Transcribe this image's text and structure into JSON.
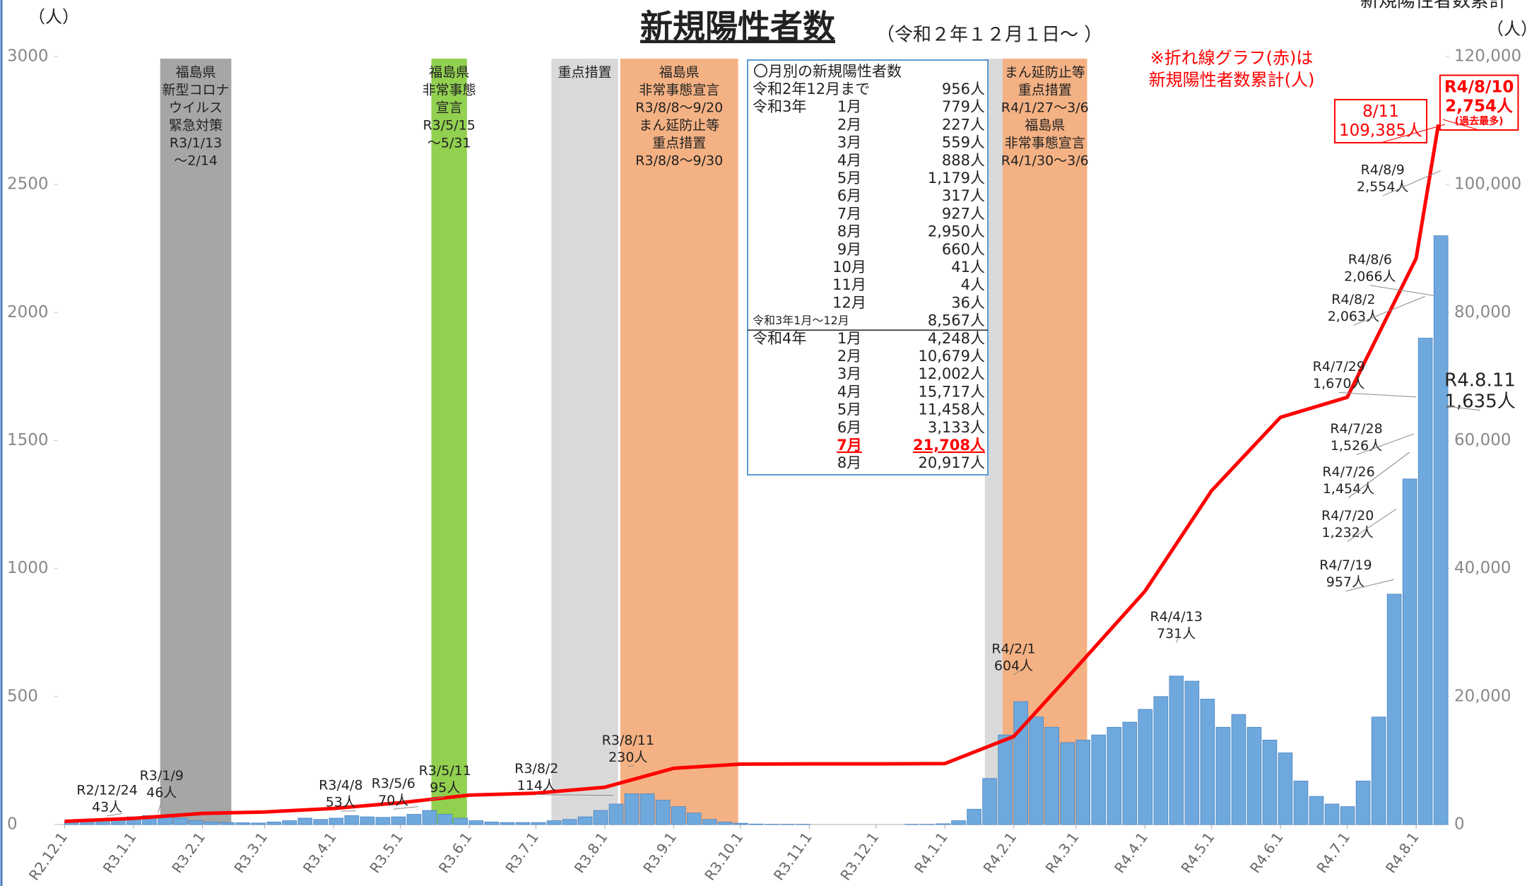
{
  "chart_data": {
    "type": "bar",
    "title": "新規陽性者数",
    "subtitle": "（令和２年１２月１日～ ）",
    "y_unit": "（人）",
    "y2_unit": "（人）",
    "y2_title": "新規陽性者数累計",
    "note": [
      "※折れ線グラフ(赤)は",
      "新規陽性者数累計(人)"
    ],
    "xlim": [
      "2020-11-28",
      "2022-08-14"
    ],
    "xticks": [
      {
        "value": "2020-12-01",
        "label": "R2.12.1"
      },
      {
        "value": "2021-01-01",
        "label": "R3.1.1"
      },
      {
        "value": "2021-02-01",
        "label": "R3.2.1"
      },
      {
        "value": "2021-03-01",
        "label": "R3.3.1"
      },
      {
        "value": "2021-04-01",
        "label": "R3.4.1"
      },
      {
        "value": "2021-05-01",
        "label": "R3.5.1"
      },
      {
        "value": "2021-06-01",
        "label": "R3.6.1"
      },
      {
        "value": "2021-07-01",
        "label": "R3.7.1"
      },
      {
        "value": "2021-08-01",
        "label": "R3.8.1"
      },
      {
        "value": "2021-09-01",
        "label": "R3.9.1"
      },
      {
        "value": "2021-10-01",
        "label": "R3.10.1"
      },
      {
        "value": "2021-11-01",
        "label": "R3.11.1"
      },
      {
        "value": "2021-12-01",
        "label": "R3.12.1"
      },
      {
        "value": "2022-01-01",
        "label": "R4.1.1"
      },
      {
        "value": "2022-02-01",
        "label": "R4.2.1"
      },
      {
        "value": "2022-03-01",
        "label": "R4.3.1"
      },
      {
        "value": "2022-04-01",
        "label": "R4.4.1"
      },
      {
        "value": "2022-05-01",
        "label": "R4.5.1"
      },
      {
        "value": "2022-06-01",
        "label": "R4.6.1"
      },
      {
        "value": "2022-07-01",
        "label": "R4.7.1"
      },
      {
        "value": "2022-08-01",
        "label": "R4.8.1"
      }
    ],
    "ylim": [
      0,
      3000
    ],
    "yticks": [
      0,
      500,
      1000,
      1500,
      2000,
      2500,
      3000
    ],
    "y2lim": [
      0,
      120000
    ],
    "y2ticks": [
      0,
      {
        "value": 20000,
        "label": "20,000"
      },
      {
        "value": 40000,
        "label": "40,000"
      },
      {
        "value": 60000,
        "label": "60,000"
      },
      {
        "value": 80000,
        "label": "80,000"
      },
      {
        "value": 100000,
        "label": "100,000"
      },
      {
        "value": 120000,
        "label": "120,000"
      }
    ],
    "series": [
      {
        "type": "bar",
        "color": "#6fa8dc",
        "x": [
          "2020-12-01",
          "2020-12-08",
          "2020-12-15",
          "2020-12-22",
          "2020-12-29",
          "2021-01-05",
          "2021-01-12",
          "2021-01-19",
          "2021-01-26",
          "2021-02-02",
          "2021-02-09",
          "2021-02-16",
          "2021-02-23",
          "2021-03-02",
          "2021-03-09",
          "2021-03-16",
          "2021-03-23",
          "2021-03-30",
          "2021-04-06",
          "2021-04-13",
          "2021-04-20",
          "2021-04-27",
          "2021-05-04",
          "2021-05-11",
          "2021-05-18",
          "2021-05-25",
          "2021-06-01",
          "2021-06-08",
          "2021-06-15",
          "2021-06-22",
          "2021-06-29",
          "2021-07-06",
          "2021-07-13",
          "2021-07-20",
          "2021-07-27",
          "2021-08-03",
          "2021-08-10",
          "2021-08-17",
          "2021-08-24",
          "2021-08-31",
          "2021-09-07",
          "2021-09-14",
          "2021-09-21",
          "2021-09-28",
          "2021-10-05",
          "2021-10-12",
          "2021-10-19",
          "2021-10-26",
          "2021-11-02",
          "2021-11-09",
          "2021-11-16",
          "2021-11-23",
          "2021-11-30",
          "2021-12-07",
          "2021-12-14",
          "2021-12-21",
          "2021-12-28",
          "2022-01-04",
          "2022-01-11",
          "2022-01-18",
          "2022-01-25",
          "2022-02-01",
          "2022-02-08",
          "2022-02-15",
          "2022-02-22",
          "2022-03-01",
          "2022-03-08",
          "2022-03-15",
          "2022-03-22",
          "2022-03-29",
          "2022-04-05",
          "2022-04-12",
          "2022-04-19",
          "2022-04-26",
          "2022-05-03",
          "2022-05-10",
          "2022-05-17",
          "2022-05-24",
          "2022-05-31",
          "2022-06-07",
          "2022-06-14",
          "2022-06-21",
          "2022-06-28",
          "2022-07-05",
          "2022-07-12",
          "2022-07-19",
          "2022-07-26",
          "2022-08-02",
          "2022-08-09"
        ],
        "values": [
          10,
          15,
          20,
          25,
          30,
          35,
          35,
          25,
          15,
          10,
          8,
          7,
          6,
          10,
          15,
          25,
          20,
          25,
          35,
          30,
          28,
          30,
          40,
          55,
          40,
          25,
          15,
          10,
          8,
          8,
          8,
          15,
          20,
          30,
          55,
          80,
          120,
          120,
          95,
          70,
          45,
          20,
          10,
          5,
          2,
          1,
          1,
          1,
          0,
          0,
          0,
          0,
          0,
          0,
          1,
          1,
          3,
          15,
          60,
          180,
          350,
          480,
          420,
          380,
          320,
          330,
          350,
          380,
          400,
          450,
          500,
          580,
          560,
          490,
          380,
          430,
          380,
          330,
          280,
          170,
          110,
          80,
          70,
          170,
          420,
          900,
          1350,
          1900,
          2300
        ]
      },
      {
        "type": "line",
        "axis": "y2",
        "color": "#ff0000",
        "x": [
          "2020-12-01",
          "2021-01-01",
          "2021-02-01",
          "2021-03-01",
          "2021-04-01",
          "2021-05-01",
          "2021-06-01",
          "2021-07-01",
          "2021-08-01",
          "2021-09-01",
          "2021-10-01",
          "2021-11-01",
          "2021-12-01",
          "2022-01-01",
          "2022-02-01",
          "2022-03-01",
          "2022-04-01",
          "2022-05-01",
          "2022-06-01",
          "2022-07-01",
          "2022-08-01",
          "2022-08-11"
        ],
        "values": [
          500,
          956,
          1735,
          1962,
          2521,
          3409,
          4588,
          4905,
          5832,
          8782,
          9442,
          9483,
          9487,
          9523,
          13771,
          24450,
          36452,
          52169,
          63627,
          66760,
          88468,
          109385
        ]
      }
    ],
    "periods": [
      {
        "start": "2021-01-13",
        "end": "2021-02-14",
        "color": "#a6a6a6",
        "label": [
          "福島県",
          "新型コロナ",
          "ウイルス",
          "緊急対策",
          "R3/1/13",
          "～2/14"
        ]
      },
      {
        "start": "2021-05-15",
        "end": "2021-05-31",
        "color": "#92d050",
        "label": [
          "福島県",
          "非常事態",
          "宣言",
          "R3/5/15",
          "～5/31"
        ]
      },
      {
        "start": "2021-07-08",
        "end": "2021-08-07",
        "color": "#d9d9d9",
        "label": [
          "重点措置"
        ]
      },
      {
        "start": "2021-08-08",
        "end": "2021-09-30",
        "color": "#f4b183",
        "label": [
          "福島県",
          "非常事態宣言",
          "R3/8/8～9/20",
          "まん延防止等",
          "重点措置",
          "R3/8/8～9/30"
        ]
      },
      {
        "start": "2022-01-19",
        "end": "2022-01-27",
        "color": "#d9d9d9",
        "label": []
      },
      {
        "start": "2022-01-27",
        "end": "2022-03-06",
        "color": "#f4b183",
        "label": [
          "まん延防止等",
          "重点措置",
          "R4/1/27～3/6",
          "福島県",
          "非常事態宣言",
          "R4/1/30～3/6"
        ]
      }
    ],
    "annotations": [
      {
        "lines": [
          "R2/12/24",
          "43人"
        ],
        "x": "2020-12-24",
        "value": 43
      },
      {
        "lines": [
          "R3/1/9",
          "46人"
        ],
        "x": "2021-01-09",
        "value": 46
      },
      {
        "lines": [
          "R3/4/8",
          "53人"
        ],
        "x": "2021-04-08",
        "value": 53
      },
      {
        "lines": [
          "R3/5/6",
          "70人"
        ],
        "x": "2021-05-06",
        "value": 70
      },
      {
        "lines": [
          "R3/5/11",
          "95人"
        ],
        "x": "2021-05-11",
        "value": 95
      },
      {
        "lines": [
          "R3/8/2",
          "114人"
        ],
        "x": "2021-08-02",
        "value": 114
      },
      {
        "lines": [
          "R3/8/11",
          "230人"
        ],
        "x": "2021-08-11",
        "value": 230
      },
      {
        "lines": [
          "R4/2/1",
          "604人"
        ],
        "x": "2022-02-01",
        "value": 604
      },
      {
        "lines": [
          "R4/4/13",
          "731人"
        ],
        "x": "2022-04-13",
        "value": 731
      },
      {
        "lines": [
          "R4/7/19",
          "957人"
        ],
        "x": "2022-07-19",
        "value": 957
      },
      {
        "lines": [
          "R4/7/20",
          "1,232人"
        ],
        "x": "2022-07-20",
        "value": 1232
      },
      {
        "lines": [
          "R4/7/26",
          "1,454人"
        ],
        "x": "2022-07-26",
        "value": 1454
      },
      {
        "lines": [
          "R4/7/28",
          "1,526人"
        ],
        "x": "2022-07-28",
        "value": 1526
      },
      {
        "lines": [
          "R4/7/29",
          "1,670人"
        ],
        "x": "2022-07-29",
        "value": 1670
      },
      {
        "lines": [
          "R4/8/2",
          "2,063人"
        ],
        "x": "2022-08-02",
        "value": 2063
      },
      {
        "lines": [
          "R4/8/6",
          "2,066人"
        ],
        "x": "2022-08-06",
        "value": 2066
      },
      {
        "lines": [
          "R4/8/9",
          "2,554人"
        ],
        "x": "2022-08-09",
        "value": 2554
      },
      {
        "lines": [
          "R4/8/10",
          "2,754人",
          "(過去最多)"
        ],
        "x": "2022-08-10",
        "value": 2754,
        "boxed": true,
        "color": "#ff0000"
      },
      {
        "lines": [
          "R4.8.11",
          "1,635人"
        ],
        "x": "2022-08-11",
        "value": 1635,
        "large": true
      },
      {
        "lines": [
          "8/11",
          "109,385人"
        ],
        "x": "2022-08-11",
        "value": 109385,
        "axis": "y2",
        "boxed": true,
        "color": "#ff0000"
      }
    ],
    "monthly_table": {
      "title": "〇月別の新規陽性者数",
      "rows": [
        {
          "label": "令和2年12月まで",
          "count": "956人"
        },
        {
          "label": "令和3年",
          "month": "1月",
          "count": "779人"
        },
        {
          "month": "2月",
          "count": "227人"
        },
        {
          "month": "3月",
          "count": "559人"
        },
        {
          "month": "4月",
          "count": "888人"
        },
        {
          "month": "5月",
          "count": "1,179人"
        },
        {
          "month": "6月",
          "count": "317人"
        },
        {
          "month": "7月",
          "count": "927人"
        },
        {
          "month": "8月",
          "count": "2,950人"
        },
        {
          "month": "9月",
          "count": "660人"
        },
        {
          "month": "10月",
          "count": "41人"
        },
        {
          "month": "11月",
          "count": "4人"
        },
        {
          "month": "12月",
          "count": "36人"
        },
        {
          "label": "令和3年1月～12月",
          "count": "8,567人",
          "small": true
        },
        {
          "label": "令和4年",
          "month": "1月",
          "count": "4,248人",
          "divider_before": true
        },
        {
          "month": "2月",
          "count": "10,679人"
        },
        {
          "month": "3月",
          "count": "12,002人"
        },
        {
          "month": "4月",
          "count": "15,717人"
        },
        {
          "month": "5月",
          "count": "11,458人"
        },
        {
          "month": "6月",
          "count": "3,133人"
        },
        {
          "month": "7月",
          "count": "21,708人",
          "highlight": true
        },
        {
          "month": "8月",
          "count": "20,917人"
        }
      ]
    }
  }
}
